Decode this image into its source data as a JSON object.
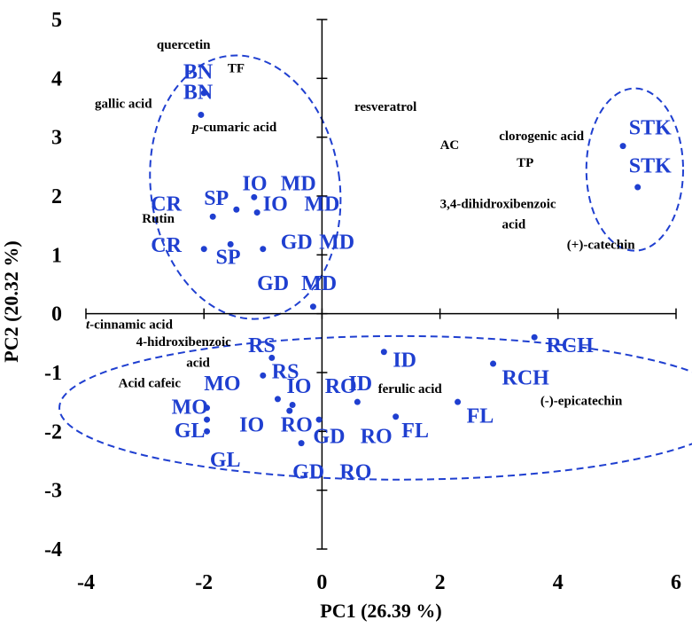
{
  "chart_data": {
    "type": "scatter",
    "title": "",
    "xlabel": "PC1 (26.39 %)",
    "ylabel": "PC2 (20.32 %)",
    "xlim": [
      -4,
      6
    ],
    "ylim": [
      -4,
      5
    ],
    "xticks": [
      "-4",
      "-2",
      "0",
      "2",
      "4",
      "6"
    ],
    "yticks": [
      "5",
      "4",
      "3",
      "2",
      "1",
      "0",
      "-1",
      "-2",
      "-3",
      "-4"
    ],
    "grid": false,
    "colors": {
      "samples": "#1f3fd0",
      "variables": "#000000",
      "axes": "#000000"
    },
    "points": [
      {
        "x": -2.0,
        "y": 3.75
      },
      {
        "x": -2.05,
        "y": 3.38
      },
      {
        "x": -1.85,
        "y": 1.65
      },
      {
        "x": -1.45,
        "y": 1.77
      },
      {
        "x": -1.15,
        "y": 1.98
      },
      {
        "x": -1.1,
        "y": 1.72
      },
      {
        "x": -2.0,
        "y": 1.1
      },
      {
        "x": -1.55,
        "y": 1.18
      },
      {
        "x": -1.0,
        "y": 1.1
      },
      {
        "x": -0.15,
        "y": 0.12
      },
      {
        "x": -0.85,
        "y": -0.75
      },
      {
        "x": -1.0,
        "y": -1.05
      },
      {
        "x": -0.75,
        "y": -1.45
      },
      {
        "x": -0.55,
        "y": -1.65
      },
      {
        "x": -0.5,
        "y": -1.55
      },
      {
        "x": -0.05,
        "y": -1.8
      },
      {
        "x": -0.35,
        "y": -2.2
      },
      {
        "x": -1.95,
        "y": -1.6
      },
      {
        "x": -1.95,
        "y": -1.8
      },
      {
        "x": -1.95,
        "y": -2.0
      },
      {
        "x": 1.05,
        "y": -0.65
      },
      {
        "x": 0.6,
        "y": -1.5
      },
      {
        "x": 1.25,
        "y": -1.75
      },
      {
        "x": 2.3,
        "y": -1.5
      },
      {
        "x": 2.9,
        "y": -0.85
      },
      {
        "x": 3.6,
        "y": -0.4
      },
      {
        "x": 5.1,
        "y": 2.85
      },
      {
        "x": 5.35,
        "y": 2.15
      }
    ],
    "sample_labels": [
      {
        "text": "BN",
        "x": -2.35,
        "y": 4.0
      },
      {
        "text": "BN",
        "x": -2.35,
        "y": 3.65
      },
      {
        "text": "IO",
        "x": -1.35,
        "y": 2.1
      },
      {
        "text": "MD",
        "x": -0.7,
        "y": 2.1
      },
      {
        "text": "CR",
        "x": -2.9,
        "y": 1.75
      },
      {
        "text": "SP",
        "x": -2.0,
        "y": 1.85
      },
      {
        "text": "IO",
        "x": -1.0,
        "y": 1.75
      },
      {
        "text": "MD",
        "x": -0.3,
        "y": 1.75
      },
      {
        "text": "GD",
        "x": -0.7,
        "y": 1.1
      },
      {
        "text": "MD",
        "x": -0.05,
        "y": 1.1
      },
      {
        "text": "CR",
        "x": -2.9,
        "y": 1.05
      },
      {
        "text": "SP",
        "x": -1.8,
        "y": 0.85
      },
      {
        "text": "GD",
        "x": -1.1,
        "y": 0.4
      },
      {
        "text": "MD",
        "x": -0.35,
        "y": 0.4
      },
      {
        "text": "RS",
        "x": -1.25,
        "y": -0.65
      },
      {
        "text": "RS",
        "x": -0.85,
        "y": -1.1
      },
      {
        "text": "MO",
        "x": -2.0,
        "y": -1.3
      },
      {
        "text": "IO",
        "x": -0.6,
        "y": -1.35
      },
      {
        "text": "RO",
        "x": 0.05,
        "y": -1.35
      },
      {
        "text": "MO",
        "x": -2.55,
        "y": -1.7
      },
      {
        "text": "IO",
        "x": -1.4,
        "y": -2.0
      },
      {
        "text": "RO",
        "x": -0.7,
        "y": -2.0
      },
      {
        "text": "GL",
        "x": -2.5,
        "y": -2.1
      },
      {
        "text": "GD",
        "x": -0.15,
        "y": -2.2
      },
      {
        "text": "RO",
        "x": 0.65,
        "y": -2.2
      },
      {
        "text": "GL",
        "x": -1.9,
        "y": -2.6
      },
      {
        "text": "GD",
        "x": -0.5,
        "y": -2.8
      },
      {
        "text": "RO",
        "x": 0.3,
        "y": -2.8
      },
      {
        "text": "ID",
        "x": 1.2,
        "y": -0.9
      },
      {
        "text": "ID",
        "x": 0.45,
        "y": -1.3
      },
      {
        "text": "FL",
        "x": 2.45,
        "y": -1.85
      },
      {
        "text": "FL",
        "x": 1.35,
        "y": -2.1
      },
      {
        "text": "RCH",
        "x": 3.8,
        "y": -0.65
      },
      {
        "text": "RCH",
        "x": 3.05,
        "y": -1.2
      },
      {
        "text": "STK",
        "x": 5.2,
        "y": 3.05
      },
      {
        "text": "STK",
        "x": 5.2,
        "y": 2.4
      }
    ],
    "variable_labels": [
      {
        "text": "quercetin",
        "x": -2.8,
        "y": 4.5
      },
      {
        "text": "TF",
        "x": -1.6,
        "y": 4.1
      },
      {
        "text": "gallic acid",
        "x": -3.85,
        "y": 3.5
      },
      {
        "text": "resveratrol",
        "x": 0.55,
        "y": 3.45
      },
      {
        "text": "AC",
        "x": 2.0,
        "y": 2.8
      },
      {
        "text": "clorogenic acid",
        "x": 3.0,
        "y": 2.95
      },
      {
        "text": "TP",
        "x": 3.3,
        "y": 2.5
      },
      {
        "text": "3,4-dihidroxibenzoic",
        "x": 2.0,
        "y": 1.8
      },
      {
        "text": "acid",
        "x": 3.05,
        "y": 1.45
      },
      {
        "text": "Rutin",
        "x": -3.05,
        "y": 1.55
      },
      {
        "text": "(+)-catechin",
        "x": 4.15,
        "y": 1.1
      },
      {
        "text": "4-hidroxibenzoic",
        "x": -3.15,
        "y": -0.55
      },
      {
        "text": "acid",
        "x": -2.3,
        "y": -0.9
      },
      {
        "text": "Acid cafeic",
        "x": -3.45,
        "y": -1.25
      },
      {
        "text": "ferulic acid",
        "x": 0.95,
        "y": -1.35
      },
      {
        "text": "(-)-epicatechin",
        "x": 3.7,
        "y": -1.55
      }
    ],
    "p_cumaric": {
      "italic": "p",
      "rest": "-cumaric acid",
      "x": -2.2,
      "y": 3.1
    },
    "t_cinnamic": {
      "italic": "t",
      "rest": "-cinnamic acid",
      "x": -4.0,
      "y": -0.25
    },
    "ellipses": [
      {
        "cx": -1.3,
        "cy": 2.15,
        "rx": 1.6,
        "ry": 2.25,
        "rotate": -8
      },
      {
        "cx": 1.3,
        "cy": -1.6,
        "rx": 5.75,
        "ry": 1.22,
        "rotate": 0
      },
      {
        "cx": 5.3,
        "cy": 2.45,
        "rx": 0.82,
        "ry": 1.38,
        "rotate": 0
      }
    ]
  }
}
